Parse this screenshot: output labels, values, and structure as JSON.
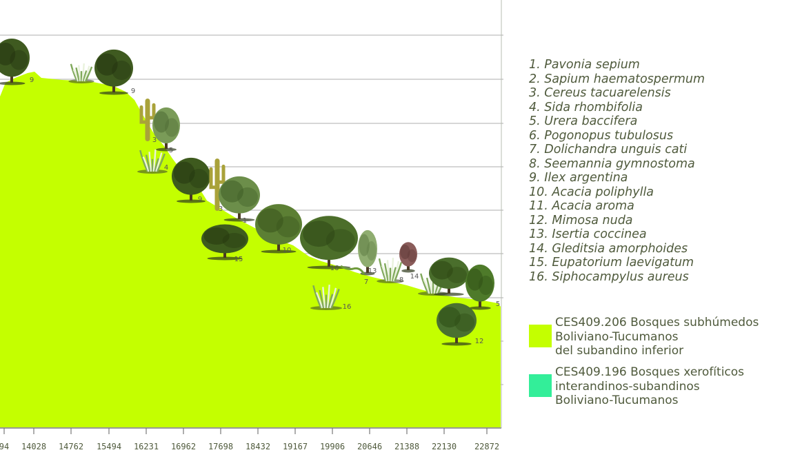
{
  "chart_data": {
    "type": "area",
    "title": "",
    "xlabel": "",
    "ylabel": "",
    "grid": true,
    "x_tick_labels": [
      "94",
      "14028",
      "14762",
      "15494",
      "16231",
      "16962",
      "17698",
      "18432",
      "19167",
      "19906",
      "20646",
      "21388",
      "22130",
      "22872"
    ],
    "series": [
      {
        "name": "CES409.206 Bosques subhúmedos Boliviano-Tucumanos del subandino inferior",
        "color": "#c4ff00"
      }
    ],
    "species": [
      "1. Pavonia sepium",
      "2. Sapium haematospermum",
      "3. Cereus tacuarelensis",
      "4. Sida rhombifolia",
      "5. Urera baccifera",
      "6. Pogonopus tubulosus",
      "7. Dolichandra unguis cati",
      "8. Seemannia gymnostoma",
      "9. Ilex argentina",
      "10. Acacia poliphylla",
      "11. Acacia aroma",
      "12. Mimosa nuda",
      "13. Isertia coccinea",
      "14. Gleditsia amorphoides",
      "15. Eupatorium laevigatum",
      "16. Siphocampylus aureus"
    ],
    "plant_labels": [
      "9",
      "9",
      "3",
      "5",
      "4",
      "9",
      "3",
      "1",
      "15",
      "10",
      "16",
      "13",
      "7",
      "8",
      "14",
      "16",
      "12",
      "5"
    ],
    "legend": [
      {
        "lines": [
          "CES409.206 Bosques subhúmedos",
          "Boliviano-Tucumanos",
          "del subandino inferior"
        ],
        "color": "#c4ff00"
      },
      {
        "lines": [
          "CES409.196 Bosques xerofíticos",
          "interandinos-subandinos",
          "Boliviano-Tucumanos"
        ],
        "color": "#33ee99"
      }
    ]
  }
}
